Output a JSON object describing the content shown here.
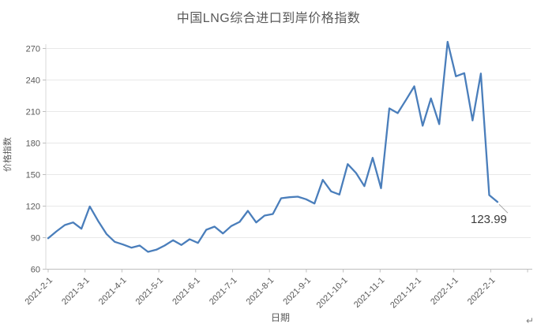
{
  "chart_data": {
    "type": "line",
    "title": "中国LNG综合进口到岸价格指数",
    "xlabel": "日期",
    "ylabel": "价格指数",
    "ylim": [
      60,
      285
    ],
    "yticks": [
      60,
      90,
      120,
      150,
      180,
      210,
      240,
      270
    ],
    "x_tick_labels": [
      "2021-2-1",
      "2021-3-1",
      "2021-4-1",
      "2021-5-1",
      "2021-6-1",
      "2021-7-1",
      "2021-8-1",
      "2021-9-1",
      "2021-10-1",
      "2021-11-1",
      "2021-12-1",
      "2022-1-1",
      "2022-2-1"
    ],
    "grid": true,
    "legend": "none",
    "series": [
      {
        "name": "中国LNG综合进口到岸价格指数",
        "color": "#4A7EBB",
        "start_date": "2021-2-1",
        "interval": "weekly",
        "values": [
          89.4,
          96,
          102,
          104.5,
          98.5,
          119.7,
          106,
          93.5,
          86,
          83.5,
          80.5,
          82.5,
          76.5,
          78.5,
          82.5,
          87.5,
          83,
          88.5,
          85,
          97.5,
          100.5,
          94,
          101,
          105,
          115.5,
          104.5,
          111,
          112.5,
          127.5,
          128.5,
          129,
          126.5,
          122.5,
          145,
          134,
          131,
          160,
          151.5,
          139,
          166,
          137,
          213,
          208.5,
          221,
          234,
          196.5,
          222.5,
          198,
          276.35,
          243.5,
          246.5,
          201.5,
          246.14,
          130.5,
          123.99
        ]
      }
    ],
    "last_point_label": "123.99"
  },
  "annotations": {
    "last_value_label": "123.99",
    "paragraph_mark": "↵"
  },
  "colors": {
    "line": "#4A7EBB",
    "axis_text": "#595959",
    "gridline": "#E8E8E8",
    "axis_line": "#BFBFBF",
    "leader_line": "#A6A6A6",
    "label_text": "#3B3B3B"
  }
}
